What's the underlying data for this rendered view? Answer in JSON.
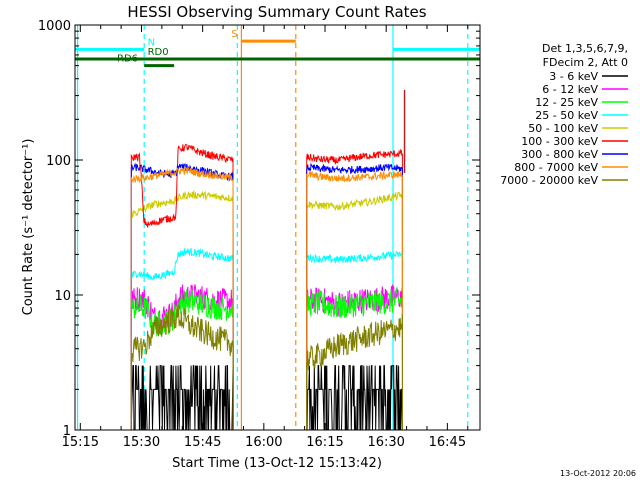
{
  "chart_data": {
    "type": "line",
    "title": "HESSI Observing Summary Count Rates",
    "xlabel": "Start Time (13-Oct-12 15:13:42)",
    "ylabel": "Count Rate (s⁻¹ detector⁻¹)",
    "yscale": "log",
    "xlim": [
      "15:13:42",
      "16:53:00"
    ],
    "ylim": [
      1,
      1000
    ],
    "x_ticks": [
      "15:15",
      "15:30",
      "15:45",
      "16:00",
      "16:15",
      "16:30",
      "16:45"
    ],
    "y_ticks": [
      "1",
      "10",
      "100",
      "1000"
    ],
    "legend_header": [
      "Det 1,3,5,6,7,9,",
      "FDecim 2, Att 0"
    ],
    "legend_position": "right",
    "series": [
      {
        "name": "3 - 6 keV",
        "color": "#000000",
        "segments": [
          {
            "x": [
              "15:27:30",
              "15:29",
              "15:32",
              "15:35",
              "15:38",
              "15:41",
              "15:44",
              "15:47",
              "15:50",
              "15:52:30"
            ],
            "y": [
              1.8,
              2.4,
              2.0,
              1.6,
              2.2,
              2.5,
              2.0,
              1.7,
              1.6,
              1.8
            ]
          },
          {
            "x": [
              "16:10:30",
              "16:14",
              "16:18",
              "16:22",
              "16:26",
              "16:30",
              "16:34"
            ],
            "y": [
              1.8,
              2.0,
              1.6,
              2.1,
              1.8,
              1.7,
              1.6
            ]
          }
        ]
      },
      {
        "name": "6 - 12 keV",
        "color": "#ff00ff",
        "segments": [
          {
            "x": [
              "15:27:30",
              "15:29",
              "15:31",
              "15:33",
              "15:35",
              "15:37",
              "15:38",
              "15:39",
              "15:41",
              "15:44",
              "15:47",
              "15:50",
              "15:52:30"
            ],
            "y": [
              9,
              9.5,
              9.2,
              6.8,
              7.0,
              7.2,
              7.5,
              9.5,
              9.8,
              9.8,
              9.2,
              9.0,
              9.0
            ]
          },
          {
            "x": [
              "16:10:30",
              "16:14",
              "16:18",
              "16:22",
              "16:26",
              "16:30",
              "16:34"
            ],
            "y": [
              9,
              9.2,
              8.6,
              9.0,
              9.2,
              9.5,
              9.7
            ]
          }
        ]
      },
      {
        "name": "12 - 25 keV",
        "color": "#00ff00",
        "segments": [
          {
            "x": [
              "15:27:30",
              "15:29",
              "15:31",
              "15:33",
              "15:35",
              "15:37",
              "15:38",
              "15:39",
              "15:41",
              "15:44",
              "15:47",
              "15:50",
              "15:52:30"
            ],
            "y": [
              8,
              8.2,
              8.0,
              6.0,
              6.2,
              6.4,
              6.8,
              8.5,
              9.0,
              8.8,
              8.3,
              8.0,
              8.0
            ]
          },
          {
            "x": [
              "16:10:30",
              "16:14",
              "16:18",
              "16:22",
              "16:26",
              "16:30",
              "16:34"
            ],
            "y": [
              8.5,
              8.7,
              8.0,
              8.5,
              8.7,
              8.9,
              9.0
            ]
          }
        ]
      },
      {
        "name": "25 - 50 keV",
        "color": "#00ffff",
        "segments": [
          {
            "x": [
              "15:27:30",
              "15:29",
              "15:31",
              "15:33",
              "15:35",
              "15:37",
              "15:38",
              "15:39",
              "15:41",
              "15:44",
              "15:47",
              "15:50",
              "15:52:30"
            ],
            "y": [
              14,
              14.5,
              14,
              13.5,
              14,
              14.5,
              15,
              20,
              21,
              20.5,
              19.5,
              19,
              18.5
            ]
          },
          {
            "x": [
              "16:10:30",
              "16:14",
              "16:18",
              "16:22",
              "16:26",
              "16:30",
              "16:34"
            ],
            "y": [
              19,
              18.5,
              18.3,
              18.6,
              19,
              19.5,
              20
            ]
          }
        ]
      },
      {
        "name": "50 - 100 keV",
        "color": "#cccc00",
        "segments": [
          {
            "x": [
              "15:27:30",
              "15:29",
              "15:31",
              "15:33",
              "15:35",
              "15:37",
              "15:38",
              "15:39",
              "15:41",
              "15:44",
              "15:47",
              "15:50",
              "15:52:30"
            ],
            "y": [
              40,
              41,
              44,
              47,
              48,
              49,
              50,
              52,
              55,
              55,
              54,
              53,
              52
            ]
          },
          {
            "x": [
              "16:10:30",
              "16:14",
              "16:18",
              "16:22",
              "16:26",
              "16:30",
              "16:34"
            ],
            "y": [
              47,
              46,
              45,
              47,
              49,
              52,
              55
            ]
          }
        ]
      },
      {
        "name": "100 - 300 keV",
        "color": "#ff0000",
        "segments": [
          {
            "x": [
              "15:27:30",
              "15:28:30",
              "15:29:30",
              "15:30:30",
              "15:31:30",
              "15:33",
              "15:35",
              "15:37",
              "15:38:30",
              "15:39",
              "15:41",
              "15:44",
              "15:47",
              "15:50",
              "15:52:30"
            ],
            "y": [
              102,
              106,
              105,
              36,
              33,
              34,
              36,
              37,
              38,
              120,
              125,
              115,
              108,
              103,
              100
            ]
          },
          {
            "x": [
              "16:10:30",
              "16:14",
              "16:18",
              "16:22",
              "16:26",
              "16:30",
              "16:34"
            ],
            "y": [
              105,
              101,
              99,
              104,
              108,
              110,
              112
            ]
          }
        ]
      },
      {
        "name": "300 - 800 keV",
        "color": "#0000ff",
        "segments": [
          {
            "x": [
              "15:27:30",
              "15:29",
              "15:31",
              "15:33",
              "15:35",
              "15:37",
              "15:38:30",
              "15:39",
              "15:41",
              "15:44",
              "15:47",
              "15:50",
              "15:52:30"
            ],
            "y": [
              87,
              88,
              85,
              82,
              79,
              78,
              80,
              90,
              88,
              85,
              80,
              76,
              75
            ]
          },
          {
            "x": [
              "16:10:30",
              "16:14",
              "16:18",
              "16:22",
              "16:26",
              "16:30",
              "16:34"
            ],
            "y": [
              88,
              86,
              84,
              85,
              86,
              88,
              86
            ]
          }
        ]
      },
      {
        "name": "800 - 7000 keV",
        "color": "#ff8c00",
        "segments": [
          {
            "x": [
              "15:27:30",
              "15:29",
              "15:31",
              "15:33",
              "15:35",
              "15:37",
              "15:38:30",
              "15:39",
              "15:41",
              "15:44",
              "15:47",
              "15:50",
              "15:52:30"
            ],
            "y": [
              72,
              73,
              74,
              76,
              78,
              80,
              81,
              83,
              84,
              80,
              78,
              75,
              74
            ]
          },
          {
            "x": [
              "16:10:30",
              "16:14",
              "16:18",
              "16:22",
              "16:26",
              "16:30",
              "16:34"
            ],
            "y": [
              78,
              75,
              73,
              74,
              75,
              77,
              78
            ]
          }
        ]
      },
      {
        "name": "7000 - 20000 keV",
        "color": "#808000",
        "segments": [
          {
            "x": [
              "15:27:30",
              "15:29",
              "15:31",
              "15:33",
              "15:35",
              "15:37",
              "15:38:30",
              "15:39",
              "15:41",
              "15:44",
              "15:47",
              "15:50",
              "15:52:30"
            ],
            "y": [
              3.8,
              4.0,
              4.2,
              5.5,
              6.0,
              6.5,
              6.8,
              7.0,
              6.2,
              5.5,
              5.0,
              4.6,
              4.3
            ]
          },
          {
            "x": [
              "16:10:30",
              "16:14",
              "16:18",
              "16:22",
              "16:26",
              "16:30",
              "16:34"
            ],
            "y": [
              3.3,
              3.6,
              4.2,
              4.6,
              5.0,
              5.4,
              5.8
            ]
          }
        ]
      }
    ],
    "orange_spike": {
      "x": "16:34:30",
      "y": 330,
      "color": "#b22222"
    },
    "vertical_markers": [
      {
        "x": "15:14:20",
        "color": "#00ffff",
        "style": "solid"
      },
      {
        "x": "15:30:40",
        "color": "#00ffff",
        "style": "dashed"
      },
      {
        "x": "15:53:30",
        "color": "#00ffff",
        "style": "dashed"
      },
      {
        "x": "15:54:30",
        "color": "#ff8c00",
        "style": "solid"
      },
      {
        "x": "16:07:50",
        "color": "#ff8c00",
        "style": "dashed"
      },
      {
        "x": "16:31:40",
        "color": "#00ffff",
        "style": "solid"
      },
      {
        "x": "16:50:00",
        "color": "#00ffff",
        "style": "dashed"
      }
    ],
    "flag_bars": [
      {
        "label": "",
        "color": "#00ffff",
        "y": 660,
        "ranges": [
          [
            "15:13:42",
            "15:30:40"
          ],
          [
            "16:31:40",
            "16:53:00"
          ]
        ]
      },
      {
        "label": "N",
        "color": "#00ffff",
        "y": 660,
        "label_x": "15:31:30",
        "ranges": []
      },
      {
        "label": "S",
        "color": "#ff8c00",
        "y": 760,
        "label_x": "15:52:00",
        "ranges": [
          [
            "15:54:30",
            "16:07:50"
          ]
        ]
      },
      {
        "label": "RD0",
        "color": "#006400",
        "y": 560,
        "label_x": "15:31:30",
        "ranges": [
          [
            "15:13:42",
            "16:53:00"
          ]
        ]
      },
      {
        "label": "RD6",
        "color": "#006400",
        "y": 500,
        "label_x": "15:24:00",
        "ranges": [
          [
            "15:30:40",
            "15:38:00"
          ]
        ]
      }
    ],
    "grid": false
  },
  "footer": {
    "timestamp": "13-Oct-2012 20:06"
  }
}
